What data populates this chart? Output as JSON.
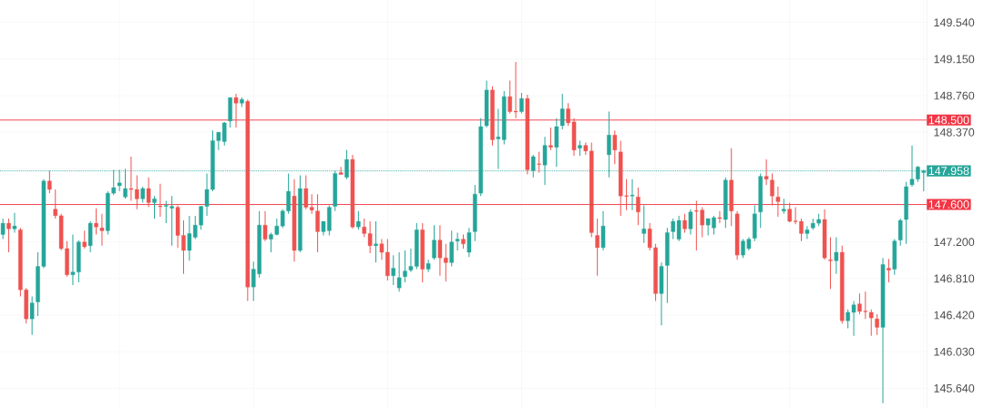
{
  "chart_data": {
    "type": "candlestick",
    "categories": [
      null,
      null,
      null,
      null,
      null,
      null,
      null,
      null,
      null,
      null,
      null,
      null,
      null,
      null,
      null,
      null,
      null,
      null,
      null,
      null,
      null,
      null,
      null,
      null,
      null,
      null,
      null,
      null,
      null,
      null,
      null,
      null,
      null,
      null,
      null,
      null,
      null,
      null,
      null,
      null,
      null,
      null,
      null,
      null,
      null,
      null,
      null,
      null,
      null,
      null,
      null,
      null,
      null,
      null,
      null,
      null,
      null,
      null,
      null,
      null,
      null,
      null,
      null,
      null,
      null,
      null,
      null,
      null,
      null,
      null,
      null,
      null,
      null,
      null,
      null,
      null,
      null,
      null,
      null,
      null,
      null,
      null,
      null,
      null,
      null,
      null,
      null,
      null,
      null,
      null,
      null,
      null,
      null,
      null,
      null,
      null,
      null,
      null,
      null,
      null,
      null,
      null,
      null,
      null,
      null,
      null,
      null,
      null,
      null,
      null,
      null,
      null,
      null,
      null,
      null,
      null,
      null,
      null,
      null,
      null,
      null,
      null,
      null,
      null,
      null,
      null,
      null,
      null,
      null,
      null,
      null,
      null,
      null,
      null,
      null,
      null,
      null,
      null,
      null,
      null,
      null,
      null,
      null,
      null,
      null,
      null,
      null,
      null,
      null,
      null,
      null,
      null,
      null,
      null,
      null,
      null,
      null,
      null,
      null
    ],
    "ohlc": [
      [
        147.28,
        147.45,
        147.23,
        147.4
      ],
      [
        147.4,
        147.45,
        147.09,
        147.34
      ],
      [
        147.34,
        147.51,
        147.3,
        147.37
      ],
      [
        147.33,
        147.35,
        146.62,
        146.69
      ],
      [
        146.69,
        146.71,
        146.33,
        146.38
      ],
      [
        146.38,
        146.62,
        146.21,
        146.55
      ],
      [
        146.56,
        147.09,
        146.41,
        146.94
      ],
      [
        146.94,
        147.87,
        146.92,
        147.85
      ],
      [
        147.85,
        147.96,
        147.72,
        147.76
      ],
      [
        147.55,
        147.76,
        147.45,
        147.48
      ],
      [
        147.48,
        147.5,
        147.11,
        147.13
      ],
      [
        147.13,
        147.21,
        146.83,
        146.85
      ],
      [
        146.85,
        147.28,
        146.74,
        146.88
      ],
      [
        146.88,
        147.22,
        146.77,
        147.2
      ],
      [
        147.2,
        147.32,
        147.13,
        147.15
      ],
      [
        147.16,
        147.42,
        147.09,
        147.4
      ],
      [
        147.4,
        147.56,
        147.28,
        147.36
      ],
      [
        147.35,
        147.5,
        147.16,
        147.32
      ],
      [
        147.32,
        147.74,
        147.28,
        147.72
      ],
      [
        147.72,
        147.97,
        147.7,
        147.78
      ],
      [
        147.8,
        147.97,
        147.74,
        147.83
      ],
      [
        147.68,
        147.98,
        147.66,
        147.77
      ],
      [
        147.77,
        148.11,
        147.64,
        147.76
      ],
      [
        147.76,
        147.91,
        147.55,
        147.66
      ],
      [
        147.66,
        147.79,
        147.62,
        147.77
      ],
      [
        147.77,
        147.89,
        147.57,
        147.62
      ],
      [
        147.62,
        147.69,
        147.45,
        147.66
      ],
      [
        147.58,
        147.82,
        147.47,
        147.58
      ],
      [
        147.58,
        147.64,
        147.4,
        147.59
      ],
      [
        147.56,
        147.69,
        147.16,
        147.58
      ],
      [
        147.57,
        147.59,
        147.14,
        147.27
      ],
      [
        147.27,
        147.43,
        146.86,
        147.11
      ],
      [
        147.11,
        147.48,
        147.0,
        147.29
      ],
      [
        147.25,
        147.48,
        147.23,
        147.38
      ],
      [
        147.38,
        147.58,
        147.33,
        147.58
      ],
      [
        147.58,
        147.93,
        147.48,
        147.76
      ],
      [
        147.76,
        148.39,
        147.74,
        148.28
      ],
      [
        148.28,
        148.37,
        148.18,
        148.37
      ],
      [
        148.27,
        148.48,
        148.23,
        148.47
      ],
      [
        148.49,
        148.74,
        148.42,
        148.74
      ],
      [
        148.74,
        148.78,
        148.42,
        148.68
      ],
      [
        148.68,
        148.74,
        148.64,
        148.72
      ],
      [
        148.7,
        148.72,
        146.57,
        146.72
      ],
      [
        146.72,
        146.99,
        146.57,
        146.91
      ],
      [
        146.86,
        147.53,
        146.82,
        147.38
      ],
      [
        147.38,
        147.53,
        147.21,
        147.23
      ],
      [
        147.23,
        147.3,
        147.09,
        147.28
      ],
      [
        147.28,
        147.45,
        147.27,
        147.37
      ],
      [
        147.37,
        147.55,
        147.35,
        147.53
      ],
      [
        147.53,
        147.93,
        147.5,
        147.74
      ],
      [
        147.69,
        147.87,
        146.99,
        147.11
      ],
      [
        147.11,
        147.91,
        147.09,
        147.77
      ],
      [
        147.77,
        147.91,
        147.55,
        147.57
      ],
      [
        147.57,
        147.71,
        147.5,
        147.54
      ],
      [
        147.53,
        147.71,
        147.09,
        147.31
      ],
      [
        147.31,
        147.42,
        147.27,
        147.42
      ],
      [
        147.32,
        147.59,
        147.27,
        147.57
      ],
      [
        147.58,
        147.96,
        147.53,
        147.93
      ],
      [
        147.94,
        148.0,
        147.92,
        147.92
      ],
      [
        147.89,
        148.18,
        147.87,
        148.08
      ],
      [
        148.08,
        148.13,
        147.34,
        147.36
      ],
      [
        147.36,
        147.53,
        147.33,
        147.42
      ],
      [
        147.36,
        147.45,
        147.25,
        147.29
      ],
      [
        147.29,
        147.42,
        147.08,
        147.16
      ],
      [
        147.16,
        147.42,
        146.98,
        147.18
      ],
      [
        147.18,
        147.23,
        147.01,
        147.09
      ],
      [
        147.09,
        147.23,
        146.79,
        146.84
      ],
      [
        146.84,
        147.06,
        146.74,
        146.92
      ],
      [
        146.71,
        147.09,
        146.67,
        146.82
      ],
      [
        146.83,
        147.11,
        146.77,
        146.89
      ],
      [
        146.9,
        147.13,
        146.88,
        146.94
      ],
      [
        146.94,
        147.4,
        146.91,
        147.33
      ],
      [
        147.33,
        147.4,
        146.77,
        146.91
      ],
      [
        146.91,
        147.01,
        146.88,
        146.97
      ],
      [
        147.03,
        147.38,
        147.01,
        147.22
      ],
      [
        147.22,
        147.38,
        146.84,
        147.03
      ],
      [
        147.03,
        147.18,
        146.78,
        146.98
      ],
      [
        146.98,
        147.32,
        146.94,
        147.2
      ],
      [
        147.21,
        147.3,
        147.11,
        147.23
      ],
      [
        147.23,
        147.28,
        147.13,
        147.18
      ],
      [
        147.09,
        147.35,
        147.04,
        147.3
      ],
      [
        147.31,
        147.81,
        147.21,
        147.71
      ],
      [
        147.72,
        148.52,
        147.69,
        148.43
      ],
      [
        148.44,
        148.92,
        148.42,
        148.82
      ],
      [
        148.82,
        148.86,
        148.23,
        148.29
      ],
      [
        148.3,
        148.62,
        147.98,
        148.32
      ],
      [
        148.29,
        148.81,
        148.24,
        148.75
      ],
      [
        148.75,
        148.92,
        148.57,
        148.59
      ],
      [
        148.59,
        149.12,
        148.52,
        148.59
      ],
      [
        148.59,
        148.79,
        148.57,
        148.73
      ],
      [
        148.73,
        148.77,
        147.92,
        147.97
      ],
      [
        147.96,
        148.13,
        147.89,
        148.11
      ],
      [
        148.03,
        148.16,
        147.94,
        148.03
      ],
      [
        148.02,
        148.32,
        147.81,
        148.23
      ],
      [
        148.23,
        148.42,
        148.18,
        148.21
      ],
      [
        148.21,
        148.52,
        148.0,
        148.43
      ],
      [
        148.44,
        148.78,
        148.4,
        148.62
      ],
      [
        148.62,
        148.68,
        148.44,
        148.47
      ],
      [
        148.48,
        148.52,
        148.12,
        148.18
      ],
      [
        148.2,
        148.28,
        148.12,
        148.23
      ],
      [
        148.23,
        148.26,
        148.13,
        148.17
      ],
      [
        148.17,
        148.26,
        147.25,
        147.3
      ],
      [
        147.27,
        147.45,
        146.84,
        147.14
      ],
      [
        147.14,
        147.53,
        147.11,
        147.37
      ],
      [
        148.13,
        148.59,
        147.89,
        148.34
      ],
      [
        148.34,
        148.39,
        148.03,
        148.18
      ],
      [
        148.16,
        148.28,
        147.48,
        147.69
      ],
      [
        147.69,
        147.87,
        147.54,
        147.69
      ],
      [
        147.69,
        147.87,
        147.54,
        147.7
      ],
      [
        147.68,
        147.78,
        147.38,
        147.52
      ],
      [
        147.29,
        147.59,
        147.19,
        147.34
      ],
      [
        147.34,
        147.4,
        147.11,
        147.14
      ],
      [
        147.14,
        147.18,
        146.57,
        146.65
      ],
      [
        146.65,
        146.98,
        146.31,
        146.94
      ],
      [
        146.95,
        147.35,
        146.55,
        147.3
      ],
      [
        147.31,
        147.45,
        147.23,
        147.42
      ],
      [
        147.23,
        147.48,
        147.21,
        147.43
      ],
      [
        147.43,
        147.5,
        147.3,
        147.34
      ],
      [
        147.34,
        147.55,
        147.28,
        147.52
      ],
      [
        147.53,
        147.64,
        147.11,
        147.53
      ],
      [
        147.54,
        147.57,
        147.25,
        147.38
      ],
      [
        147.38,
        147.45,
        147.27,
        147.45
      ],
      [
        147.35,
        147.48,
        147.28,
        147.46
      ],
      [
        147.46,
        147.53,
        147.4,
        147.45
      ],
      [
        147.44,
        147.89,
        147.35,
        147.86
      ],
      [
        147.86,
        148.2,
        147.37,
        147.53
      ],
      [
        147.5,
        147.53,
        147.01,
        147.06
      ],
      [
        147.06,
        147.23,
        147.03,
        147.21
      ],
      [
        147.13,
        147.25,
        147.11,
        147.23
      ],
      [
        147.24,
        147.59,
        147.21,
        147.5
      ],
      [
        147.52,
        147.93,
        147.35,
        147.9
      ],
      [
        147.9,
        148.08,
        147.81,
        147.87
      ],
      [
        147.86,
        147.93,
        147.59,
        147.69
      ],
      [
        147.68,
        147.79,
        147.47,
        147.63
      ],
      [
        147.53,
        147.66,
        147.5,
        147.55
      ],
      [
        147.55,
        147.62,
        147.41,
        147.42
      ],
      [
        147.42,
        147.57,
        147.39,
        147.42
      ],
      [
        147.42,
        147.45,
        147.21,
        147.29
      ],
      [
        147.29,
        147.37,
        147.23,
        147.33
      ],
      [
        147.35,
        147.45,
        147.33,
        147.4
      ],
      [
        147.4,
        147.5,
        147.37,
        147.44
      ],
      [
        147.44,
        147.55,
        147.01,
        147.03
      ],
      [
        147.01,
        147.25,
        146.7,
        147.0
      ],
      [
        147.0,
        147.25,
        146.86,
        147.09
      ],
      [
        147.09,
        147.16,
        146.33,
        146.36
      ],
      [
        146.36,
        146.48,
        146.28,
        146.45
      ],
      [
        146.45,
        146.57,
        146.2,
        146.53
      ],
      [
        146.54,
        146.65,
        146.43,
        146.46
      ],
      [
        146.46,
        146.67,
        146.38,
        146.46
      ],
      [
        146.45,
        146.48,
        146.2,
        146.39
      ],
      [
        146.38,
        146.43,
        146.21,
        146.29
      ],
      [
        146.29,
        147.03,
        145.48,
        146.96
      ],
      [
        146.92,
        147.02,
        146.77,
        146.9
      ],
      [
        146.91,
        147.23,
        146.85,
        147.21
      ],
      [
        147.22,
        147.45,
        147.16,
        147.43
      ],
      [
        147.44,
        147.84,
        147.18,
        147.79
      ],
      [
        147.81,
        148.23,
        147.79,
        147.87
      ],
      [
        147.87,
        148.01,
        147.84,
        148.0
      ],
      [
        147.94,
        147.97,
        147.74,
        147.96
      ]
    ],
    "colors": [
      "#26a69a",
      "#ef5350",
      "#26a69a",
      "#ef5350",
      "#ef5350",
      "#26a69a",
      "#26a69a",
      "#26a69a",
      "#ef5350",
      "#ef5350",
      "#ef5350",
      "#ef5350",
      "#26a69a",
      "#26a69a",
      "#ef5350",
      "#26a69a",
      "#ef5350",
      "#ef5350",
      "#26a69a",
      "#26a69a",
      "#26a69a",
      "#26a69a",
      "#ef5350",
      "#ef5350",
      "#26a69a",
      "#ef5350",
      "#26a69a",
      "#ef5350",
      "#26a69a",
      "#26a69a",
      "#ef5350",
      "#ef5350",
      "#26a69a",
      "#26a69a",
      "#26a69a",
      "#26a69a",
      "#26a69a",
      "#26a69a",
      "#26a69a",
      "#26a69a",
      "#ef5350",
      "#26a69a",
      "#ef5350",
      "#26a69a",
      "#26a69a",
      "#ef5350",
      "#26a69a",
      "#26a69a",
      "#26a69a",
      "#26a69a",
      "#ef5350",
      "#26a69a",
      "#ef5350",
      "#ef5350",
      "#ef5350",
      "#26a69a",
      "#26a69a",
      "#26a69a",
      "#ef5350",
      "#26a69a",
      "#ef5350",
      "#26a69a",
      "#ef5350",
      "#ef5350",
      "#26a69a",
      "#ef5350",
      "#ef5350",
      "#26a69a",
      "#26a69a",
      "#26a69a",
      "#26a69a",
      "#26a69a",
      "#ef5350",
      "#26a69a",
      "#26a69a",
      "#ef5350",
      "#ef5350",
      "#26a69a",
      "#26a69a",
      "#ef5350",
      "#26a69a",
      "#26a69a",
      "#26a69a",
      "#26a69a",
      "#ef5350",
      "#26a69a",
      "#26a69a",
      "#ef5350",
      "#ef5350",
      "#26a69a",
      "#ef5350",
      "#26a69a",
      "#ef5350",
      "#26a69a",
      "#ef5350",
      "#26a69a",
      "#26a69a",
      "#ef5350",
      "#ef5350",
      "#26a69a",
      "#ef5350",
      "#ef5350",
      "#ef5350",
      "#26a69a",
      "#26a69a",
      "#ef5350",
      "#ef5350",
      "#ef5350",
      "#26a69a",
      "#ef5350",
      "#26a69a",
      "#ef5350",
      "#ef5350",
      "#26a69a",
      "#26a69a",
      "#26a69a",
      "#26a69a",
      "#ef5350",
      "#26a69a",
      "#ef5350",
      "#ef5350",
      "#26a69a",
      "#26a69a",
      "#ef5350",
      "#26a69a",
      "#ef5350",
      "#ef5350",
      "#26a69a",
      "#26a69a",
      "#26a69a",
      "#26a69a",
      "#ef5350",
      "#ef5350",
      "#ef5350",
      "#26a69a",
      "#ef5350",
      "#ef5350",
      "#ef5350",
      "#26a69a",
      "#26a69a",
      "#26a69a",
      "#ef5350",
      "#ef5350",
      "#26a69a",
      "#ef5350",
      "#26a69a",
      "#26a69a",
      "#ef5350",
      "#ef5350",
      "#ef5350",
      "#ef5350",
      "#26a69a",
      "#ef5350",
      "#26a69a",
      "#26a69a",
      "#26a69a",
      "#26a69a",
      "#26a69a",
      "#26a69a"
    ],
    "ylim": [
      145.43,
      149.78
    ],
    "yticks": [
      {
        "value": 145.64,
        "label": "145.640"
      },
      {
        "value": 146.03,
        "label": "146.030"
      },
      {
        "value": 146.42,
        "label": "146.420"
      },
      {
        "value": 146.81,
        "label": "146.810"
      },
      {
        "value": 147.2,
        "label": "147.200"
      },
      {
        "value": 147.59,
        "label": null
      },
      {
        "value": 147.98,
        "label": null
      },
      {
        "value": 148.37,
        "label": "148.370"
      },
      {
        "value": 148.76,
        "label": "148.760"
      },
      {
        "value": 149.15,
        "label": "149.150"
      },
      {
        "value": 149.54,
        "label": "149.540"
      }
    ],
    "ref_lines": [
      {
        "axis": "y",
        "value": 148.5,
        "label": "148.500",
        "color": "#f23645",
        "line_style": "solid"
      },
      {
        "axis": "y",
        "value": 147.6,
        "label": "147.600",
        "color": "#f23645",
        "line_style": "solid"
      },
      {
        "axis": "y",
        "value": 147.958,
        "label": "147.958",
        "color": "#26a69a",
        "line_style": "dotted"
      }
    ],
    "grid": true,
    "tick_labels": "y"
  }
}
